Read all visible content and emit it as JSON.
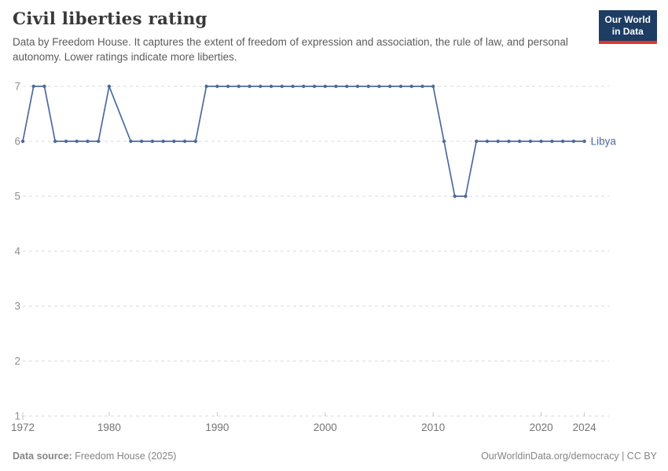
{
  "header": {
    "title": "Civil liberties rating",
    "subtitle": "Data by Freedom House. It captures the extent of freedom of expression and association, the rule of law, and personal autonomy. Lower ratings indicate more liberties.",
    "logo": {
      "line1": "Our World",
      "line2": "in Data"
    }
  },
  "chart_data": {
    "type": "line",
    "title": "Civil liberties rating",
    "entity_label": "Libya",
    "xlabel": "",
    "ylabel": "",
    "xlim": [
      1972,
      2024
    ],
    "ylim": [
      1,
      7
    ],
    "x_ticks": [
      1972,
      1980,
      1990,
      2000,
      2010,
      2020,
      2024
    ],
    "y_ticks": [
      1,
      2,
      3,
      4,
      5,
      6,
      7
    ],
    "grid": "horizontal-dashed",
    "legend_position": "end-of-line",
    "line_color": "#4C6A9C",
    "gridline_color": "#dadada",
    "y_tick_color": "#8f8f8f",
    "x_tick_color": "#737373",
    "series": [
      {
        "name": "Libya",
        "note": "no data for 1981; line interpolates 1980-1982",
        "points": [
          [
            1972,
            6
          ],
          [
            1973,
            7
          ],
          [
            1974,
            7
          ],
          [
            1975,
            6
          ],
          [
            1976,
            6
          ],
          [
            1977,
            6
          ],
          [
            1978,
            6
          ],
          [
            1979,
            6
          ],
          [
            1980,
            7
          ],
          [
            1982,
            6
          ],
          [
            1983,
            6
          ],
          [
            1984,
            6
          ],
          [
            1985,
            6
          ],
          [
            1986,
            6
          ],
          [
            1987,
            6
          ],
          [
            1988,
            6
          ],
          [
            1989,
            7
          ],
          [
            1990,
            7
          ],
          [
            1991,
            7
          ],
          [
            1992,
            7
          ],
          [
            1993,
            7
          ],
          [
            1994,
            7
          ],
          [
            1995,
            7
          ],
          [
            1996,
            7
          ],
          [
            1997,
            7
          ],
          [
            1998,
            7
          ],
          [
            1999,
            7
          ],
          [
            2000,
            7
          ],
          [
            2001,
            7
          ],
          [
            2002,
            7
          ],
          [
            2003,
            7
          ],
          [
            2004,
            7
          ],
          [
            2005,
            7
          ],
          [
            2006,
            7
          ],
          [
            2007,
            7
          ],
          [
            2008,
            7
          ],
          [
            2009,
            7
          ],
          [
            2010,
            7
          ],
          [
            2011,
            6
          ],
          [
            2012,
            5
          ],
          [
            2013,
            5
          ],
          [
            2014,
            6
          ],
          [
            2015,
            6
          ],
          [
            2016,
            6
          ],
          [
            2017,
            6
          ],
          [
            2018,
            6
          ],
          [
            2019,
            6
          ],
          [
            2020,
            6
          ],
          [
            2021,
            6
          ],
          [
            2022,
            6
          ],
          [
            2023,
            6
          ],
          [
            2024,
            6
          ]
        ]
      }
    ]
  },
  "footer": {
    "source_label": "Data source:",
    "source_value": " Freedom House (2025)",
    "link": "OurWorldinData.org/democracy",
    "separator": " | ",
    "license": "CC BY"
  }
}
